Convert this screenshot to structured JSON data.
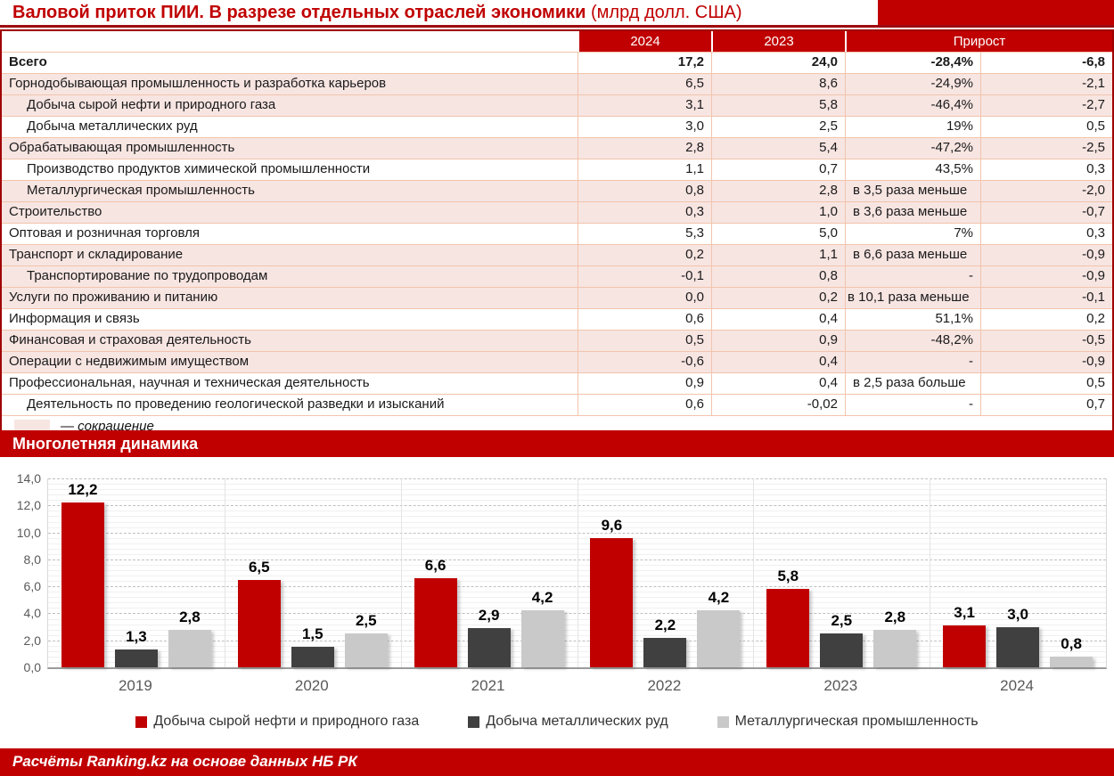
{
  "colors": {
    "red": "#C00000",
    "darkred": "#9E0B0F",
    "pink": "#F7E5E2",
    "rowborder": "#F2C4AC",
    "axistext": "#595959"
  },
  "title": {
    "main": "Валовой приток ПИИ. В разрезе отдельных отраслей экономики",
    "suffix": " (млрд долл. США)"
  },
  "table": {
    "col_headers": [
      "2024",
      "2023",
      "Прирост"
    ],
    "rows": [
      {
        "label": "Всего",
        "indent": false,
        "bold": true,
        "pink": false,
        "y2024": "17,2",
        "y2023": "24,0",
        "growth_pct": "-28,4%",
        "pct_left": false,
        "outdent": false,
        "growth_abs": "-6,8"
      },
      {
        "label": "Горнодобывающая промышленность и разработка карьеров",
        "indent": false,
        "bold": false,
        "pink": true,
        "y2024": "6,5",
        "y2023": "8,6",
        "growth_pct": "-24,9%",
        "pct_left": false,
        "outdent": false,
        "growth_abs": "-2,1"
      },
      {
        "label": "Добыча сырой нефти и природного газа",
        "indent": true,
        "bold": false,
        "pink": true,
        "y2024": "3,1",
        "y2023": "5,8",
        "growth_pct": "-46,4%",
        "pct_left": false,
        "outdent": false,
        "growth_abs": "-2,7"
      },
      {
        "label": "Добыча металлических руд",
        "indent": true,
        "bold": false,
        "pink": false,
        "y2024": "3,0",
        "y2023": "2,5",
        "growth_pct": "19%",
        "pct_left": false,
        "outdent": false,
        "growth_abs": "0,5"
      },
      {
        "label": "Обрабатывающая промышленность",
        "indent": false,
        "bold": false,
        "pink": true,
        "y2024": "2,8",
        "y2023": "5,4",
        "growth_pct": "-47,2%",
        "pct_left": false,
        "outdent": false,
        "growth_abs": "-2,5"
      },
      {
        "label": "Производство продуктов химической промышленности",
        "indent": true,
        "bold": false,
        "pink": false,
        "y2024": "1,1",
        "y2023": "0,7",
        "growth_pct": "43,5%",
        "pct_left": false,
        "outdent": false,
        "growth_abs": "0,3"
      },
      {
        "label": "Металлургическая промышленность",
        "indent": true,
        "bold": false,
        "pink": true,
        "y2024": "0,8",
        "y2023": "2,8",
        "growth_pct": "в 3,5 раза меньше",
        "pct_left": true,
        "outdent": false,
        "growth_abs": "-2,0"
      },
      {
        "label": "Строительство",
        "indent": false,
        "bold": false,
        "pink": true,
        "y2024": "0,3",
        "y2023": "1,0",
        "growth_pct": "в 3,6 раза меньше",
        "pct_left": true,
        "outdent": false,
        "growth_abs": "-0,7"
      },
      {
        "label": "Оптовая и розничная торговля",
        "indent": false,
        "bold": false,
        "pink": false,
        "y2024": "5,3",
        "y2023": "5,0",
        "growth_pct": "7%",
        "pct_left": false,
        "outdent": false,
        "growth_abs": "0,3"
      },
      {
        "label": "Транспорт и складирование",
        "indent": false,
        "bold": false,
        "pink": true,
        "y2024": "0,2",
        "y2023": "1,1",
        "growth_pct": "в 6,6 раза меньше",
        "pct_left": true,
        "outdent": false,
        "growth_abs": "-0,9"
      },
      {
        "label": "Транспортирование по трудопроводам",
        "indent": true,
        "bold": false,
        "pink": true,
        "y2024": "-0,1",
        "y2023": "0,8",
        "growth_pct": "-",
        "pct_left": false,
        "outdent": false,
        "growth_abs": "-0,9"
      },
      {
        "label": "Услуги по проживанию и питанию",
        "indent": false,
        "bold": false,
        "pink": true,
        "y2024": "0,0",
        "y2023": "0,2",
        "growth_pct": "в 10,1 раза меньше",
        "pct_left": true,
        "outdent": true,
        "growth_abs": "-0,1"
      },
      {
        "label": "Информация и связь",
        "indent": false,
        "bold": false,
        "pink": false,
        "y2024": "0,6",
        "y2023": "0,4",
        "growth_pct": "51,1%",
        "pct_left": false,
        "outdent": false,
        "growth_abs": "0,2"
      },
      {
        "label": "Финансовая и страховая деятельность",
        "indent": false,
        "bold": false,
        "pink": true,
        "y2024": "0,5",
        "y2023": "0,9",
        "growth_pct": "-48,2%",
        "pct_left": false,
        "outdent": false,
        "growth_abs": "-0,5"
      },
      {
        "label": "Операции с недвижимым имуществом",
        "indent": false,
        "bold": false,
        "pink": true,
        "y2024": "-0,6",
        "y2023": "0,4",
        "growth_pct": "-",
        "pct_left": false,
        "outdent": false,
        "growth_abs": "-0,9"
      },
      {
        "label": "Профессиональная, научная и техническая деятельность",
        "indent": false,
        "bold": false,
        "pink": false,
        "y2024": "0,9",
        "y2023": "0,4",
        "growth_pct": "в 2,5 раза больше",
        "pct_left": true,
        "outdent": false,
        "growth_abs": "0,5"
      },
      {
        "label": "Деятельность по проведению геологической разведки и изысканий",
        "indent": true,
        "bold": false,
        "pink": false,
        "y2024": "0,6",
        "y2023": "-0,02",
        "growth_pct": "-",
        "pct_left": false,
        "outdent": false,
        "growth_abs": "0,7"
      }
    ],
    "legend_label": "— сокращение"
  },
  "section_header": "Многолетняя динамика",
  "chart_data": {
    "type": "bar",
    "title": "Многолетняя динамика",
    "categories": [
      "2019",
      "2020",
      "2021",
      "2022",
      "2023",
      "2024"
    ],
    "series": [
      {
        "name": "Добыча сырой нефти и природного газа",
        "color": "#C00000",
        "values": [
          12.2,
          6.5,
          6.6,
          9.6,
          5.8,
          3.1
        ],
        "labels": [
          "12,2",
          "6,5",
          "6,6",
          "9,6",
          "5,8",
          "3,1"
        ]
      },
      {
        "name": "Добыча металлических руд",
        "color": "#404040",
        "values": [
          1.3,
          1.5,
          2.9,
          2.2,
          2.5,
          3.0
        ],
        "labels": [
          "1,3",
          "1,5",
          "2,9",
          "2,2",
          "2,5",
          "3,0"
        ]
      },
      {
        "name": "Металлургическая промышленность",
        "color": "#C9C9C9",
        "values": [
          2.8,
          2.5,
          4.2,
          4.2,
          2.8,
          0.8
        ],
        "labels": [
          "2,8",
          "2,5",
          "4,2",
          "4,2",
          "2,8",
          "0,8"
        ]
      }
    ],
    "xlabel": "",
    "ylabel": "",
    "ylim": [
      0,
      14
    ],
    "ytick_step": 2,
    "ytick_labels": [
      "0,0",
      "2,0",
      "4,0",
      "6,0",
      "8,0",
      "10,0",
      "12,0",
      "14,0"
    ],
    "grid": true,
    "legend_position": "bottom"
  },
  "footer": {
    "text": "Расчёты Ranking.kz на основе данных НБ РК"
  }
}
